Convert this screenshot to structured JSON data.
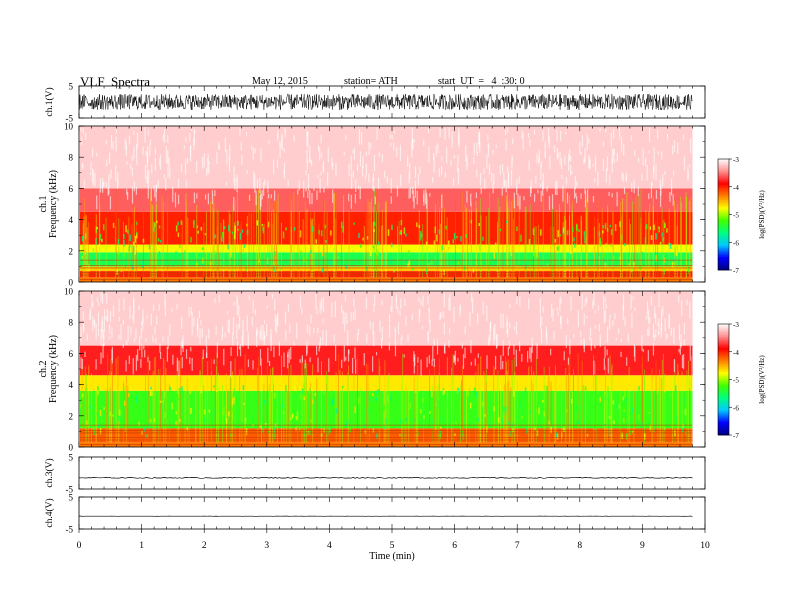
{
  "header": {
    "title": "VLF  Spectra",
    "date": "May 12, 2015",
    "station": "station= ATH",
    "start": "start  UT  =   4  :30: 0"
  },
  "colors": {
    "colormap": [
      "#000080",
      "#0000ff",
      "#00c8ff",
      "#00ff80",
      "#40ff00",
      "#ffff00",
      "#ff8000",
      "#ff0000",
      "#ff9090",
      "#ffffff"
    ],
    "trace": "#000000"
  },
  "chart_data": [
    {
      "type": "line",
      "panel": "ch1-waveform",
      "ylabel": "ch.1(V)",
      "ylim": [
        -5,
        5
      ],
      "yticks": [
        "5",
        "-5"
      ],
      "description_values": {
        "amplitude_range": [
          -2.5,
          2.5
        ]
      }
    },
    {
      "type": "heatmap",
      "panel": "ch1-spectrogram",
      "ylabel": "ch.1\nFrequency  (kHz)",
      "ylabel_lines": [
        "ch.1",
        "Frequency  (kHz)"
      ],
      "ylim": [
        0,
        10
      ],
      "yticks": [
        "0",
        "2",
        "4",
        "6",
        "8",
        "10"
      ],
      "colorbar": {
        "label": "log(PSD)(V²/Hz)",
        "range": [
          -7,
          -3
        ],
        "ticks": [
          "-3",
          "-4",
          "-5",
          "-6",
          "-7"
        ]
      },
      "bands": [
        {
          "fmin": 0.0,
          "fmax": 0.3,
          "logpsd": -4.3
        },
        {
          "fmin": 0.3,
          "fmax": 0.7,
          "logpsd": -4.0
        },
        {
          "fmin": 0.7,
          "fmax": 1.0,
          "logpsd": -4.6
        },
        {
          "fmin": 1.0,
          "fmax": 1.9,
          "logpsd": -5.5
        },
        {
          "fmin": 1.9,
          "fmax": 2.4,
          "logpsd": -4.8
        },
        {
          "fmin": 2.4,
          "fmax": 4.5,
          "logpsd": -4.0
        },
        {
          "fmin": 4.5,
          "fmax": 6.0,
          "logpsd": -3.6
        },
        {
          "fmin": 6.0,
          "fmax": 10.0,
          "logpsd": -3.2
        }
      ]
    },
    {
      "type": "heatmap",
      "panel": "ch2-spectrogram",
      "ylabel": "ch.2\nFrequency  (kHz)",
      "ylabel_lines": [
        "ch.2",
        "Frequency  (kHz)"
      ],
      "ylim": [
        0,
        10
      ],
      "yticks": [
        "0",
        "2",
        "4",
        "6",
        "8",
        "10"
      ],
      "colorbar": {
        "label": "log(PSD)(V²/Hz)",
        "range": [
          -7,
          -3
        ],
        "ticks": [
          "-3",
          "-4",
          "-5",
          "-6",
          "-7"
        ]
      },
      "bands": [
        {
          "fmin": 0.0,
          "fmax": 0.3,
          "logpsd": -4.3
        },
        {
          "fmin": 0.3,
          "fmax": 1.2,
          "logpsd": -4.2
        },
        {
          "fmin": 1.2,
          "fmax": 3.6,
          "logpsd": -5.3
        },
        {
          "fmin": 3.6,
          "fmax": 4.6,
          "logpsd": -4.7
        },
        {
          "fmin": 4.6,
          "fmax": 6.5,
          "logpsd": -3.8
        },
        {
          "fmin": 6.5,
          "fmax": 10.0,
          "logpsd": -3.2
        }
      ]
    },
    {
      "type": "line",
      "panel": "ch3-waveform",
      "ylabel": "ch.3(V)",
      "ylim": [
        -5,
        5
      ],
      "yticks": [
        "5",
        "-5"
      ],
      "description_values": {
        "level": -1.5
      }
    },
    {
      "type": "line",
      "panel": "ch4-waveform",
      "ylabel": "ch.4(V)",
      "ylim": [
        -5,
        5
      ],
      "yticks": [
        "5",
        "-5"
      ],
      "description_values": {
        "level": -1.0
      }
    }
  ],
  "xaxis": {
    "label": "Time  (min)",
    "range": [
      0,
      10
    ],
    "ticks": [
      "0",
      "1",
      "2",
      "3",
      "4",
      "5",
      "6",
      "7",
      "8",
      "9",
      "10"
    ],
    "data_end": 9.8
  }
}
